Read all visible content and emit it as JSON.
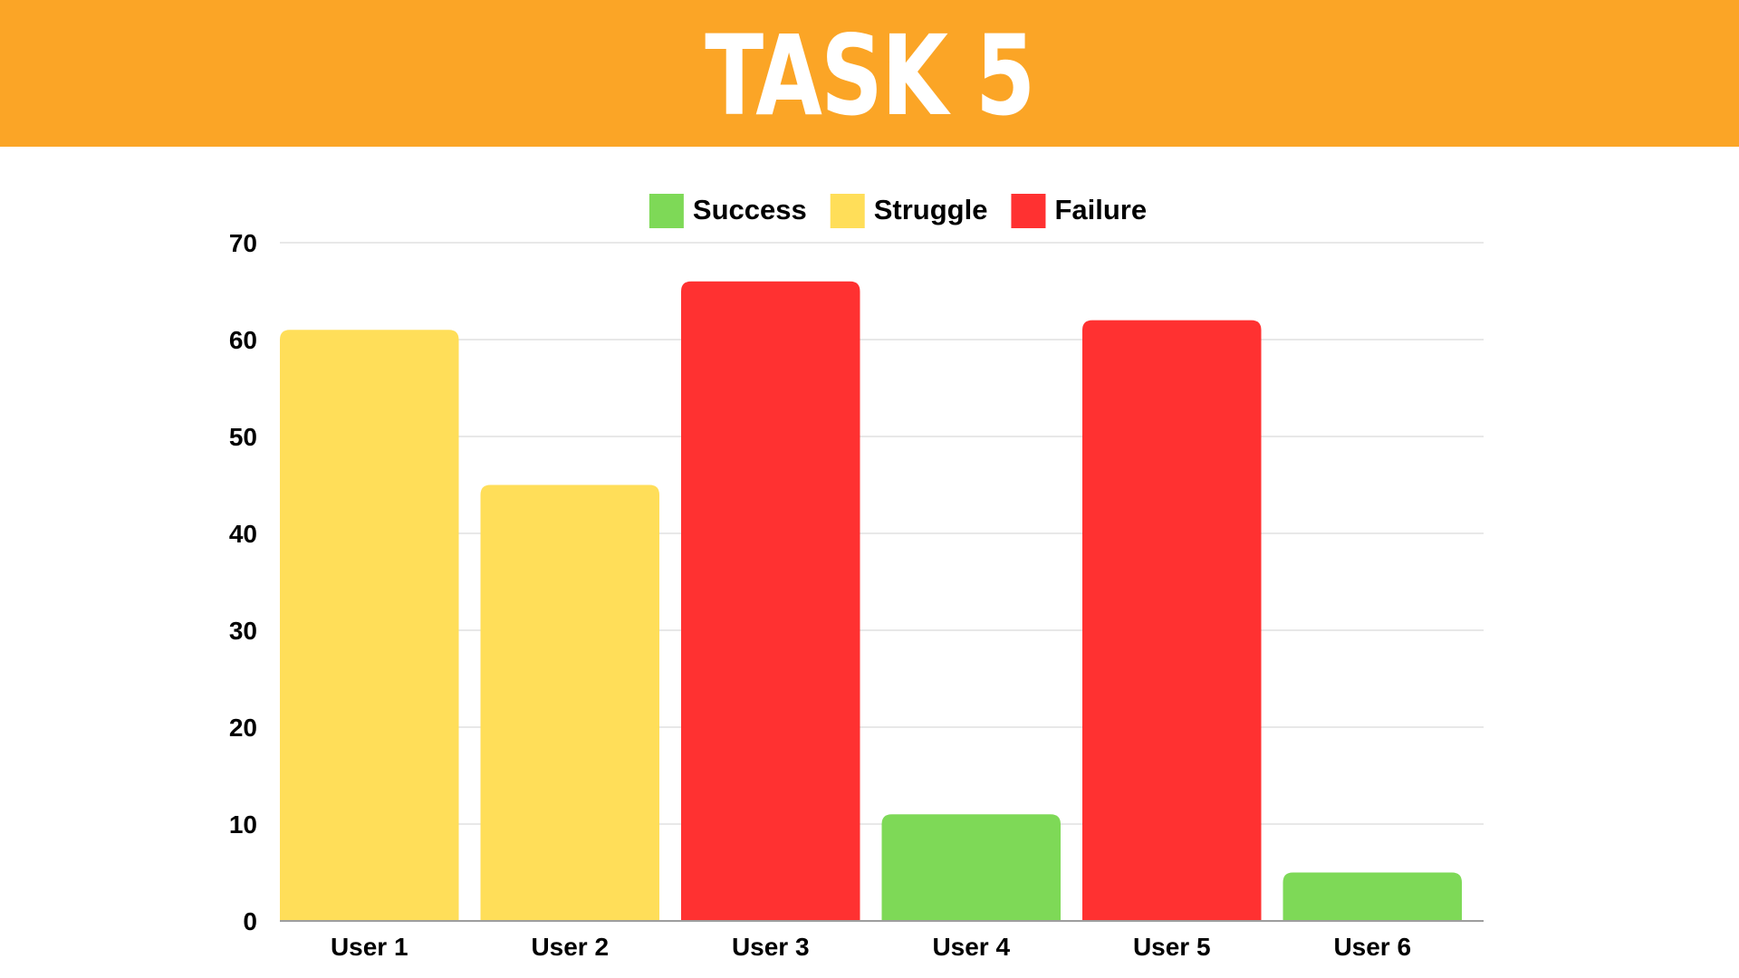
{
  "header": {
    "title": "TASK 5",
    "background": "#FBA526"
  },
  "chart_data": {
    "type": "bar",
    "title": "",
    "xlabel": "",
    "ylabel": "",
    "categories": [
      "User 1",
      "User 2",
      "User 3",
      "User 4",
      "User 5",
      "User 6"
    ],
    "values": [
      61,
      45,
      66,
      11,
      62,
      5
    ],
    "outcome": [
      "Struggle",
      "Struggle",
      "Failure",
      "Success",
      "Failure",
      "Success"
    ],
    "ylim": [
      0,
      70
    ],
    "yticks": [
      0,
      10,
      20,
      30,
      40,
      50,
      60,
      70
    ],
    "grid": true,
    "legend_position": "top-center",
    "legend": [
      {
        "label": "Success",
        "color": "#7ED957"
      },
      {
        "label": "Struggle",
        "color": "#FFDE59"
      },
      {
        "label": "Failure",
        "color": "#FF3131"
      }
    ]
  }
}
